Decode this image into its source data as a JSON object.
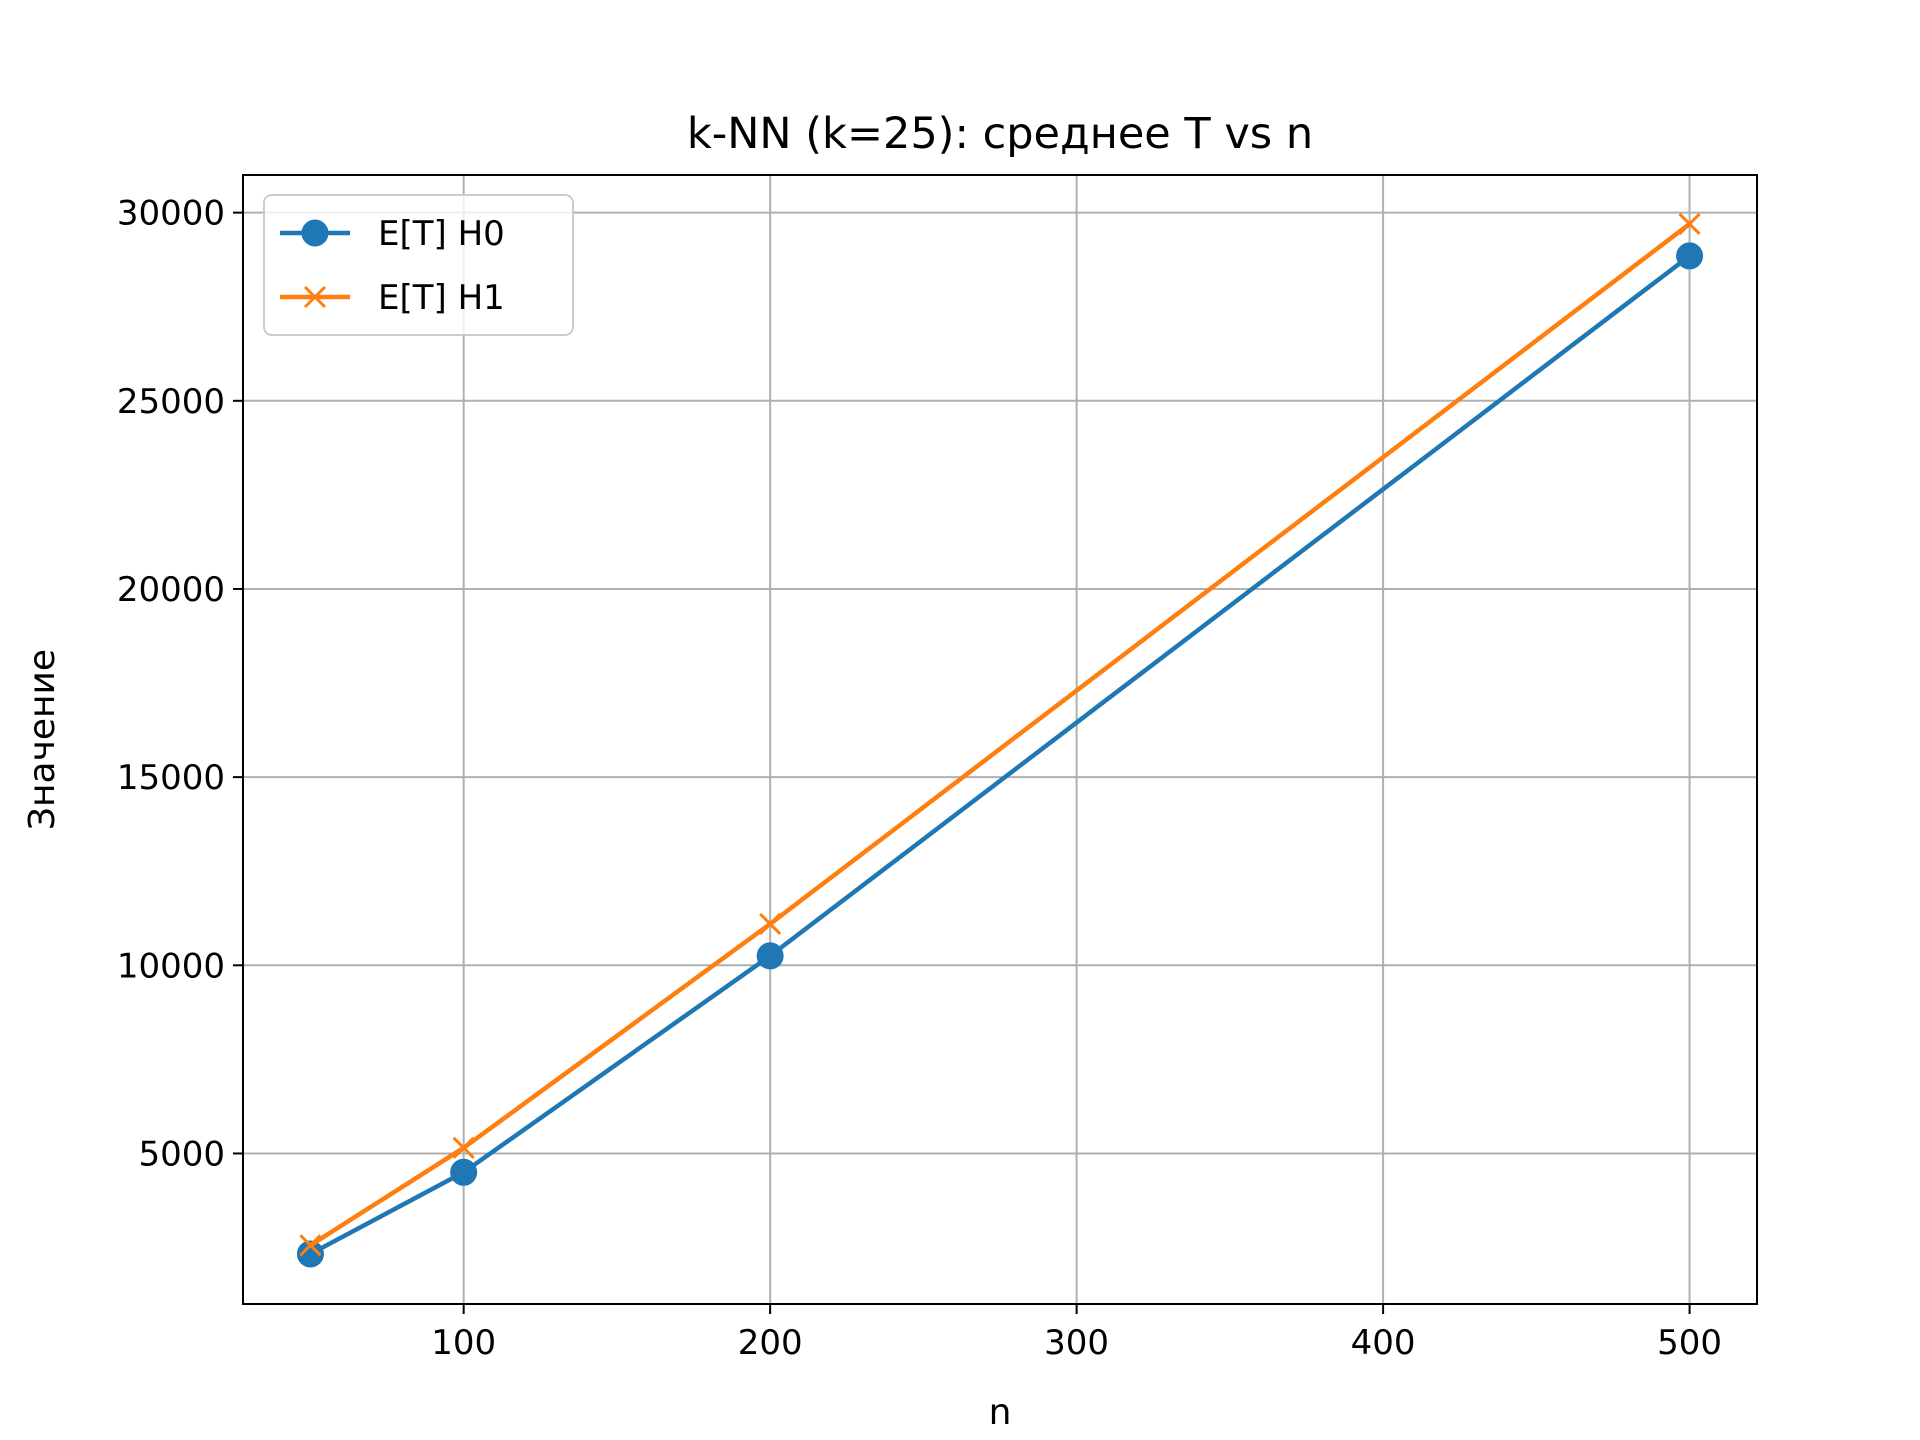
{
  "chart_data": {
    "type": "line",
    "title": "k-NN (k=25): среднее T vs n",
    "xlabel": "n",
    "ylabel": "Значение",
    "x": [
      50,
      100,
      200,
      500
    ],
    "xlim": [
      28,
      522
    ],
    "ylim": [
      1000,
      31000
    ],
    "xticks": [
      100,
      200,
      300,
      400,
      500
    ],
    "yticks": [
      5000,
      10000,
      15000,
      20000,
      25000,
      30000
    ],
    "grid": true,
    "legend_position": "top-left",
    "series": [
      {
        "name": "E[T] H0",
        "values": [
          2330,
          4500,
          10250,
          28850
        ],
        "color": "#1f77b4",
        "marker": "circle"
      },
      {
        "name": "E[T] H1",
        "values": [
          2560,
          5150,
          11100,
          29700
        ],
        "color": "#ff7f0e",
        "marker": "x"
      }
    ]
  }
}
